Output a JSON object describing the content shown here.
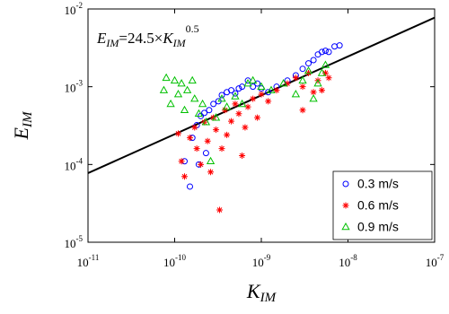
{
  "chart_data": {
    "type": "scatter",
    "x_label": {
      "text": "K",
      "subscript": "IM"
    },
    "y_label": {
      "text": "E",
      "subscript": "IM"
    },
    "annotation": {
      "parts": [
        {
          "text": "E",
          "style": "italic"
        },
        {
          "text": "IM",
          "style": "sub"
        },
        {
          "text": "=24.5×",
          "style": "normal"
        },
        {
          "text": "K",
          "style": "italic"
        },
        {
          "text": "IM",
          "style": "sub"
        },
        {
          "text": "0.5",
          "style": "sup"
        }
      ]
    },
    "fit": {
      "coefficient": 24.5,
      "exponent": 0.5,
      "color": "#000000"
    },
    "x_log": true,
    "y_log": true,
    "xlim": [
      1e-11,
      1e-07
    ],
    "ylim": [
      1e-05,
      0.01
    ],
    "xticks": [
      {
        "value": 1e-11,
        "label": {
          "base": "10",
          "exponent": "-11"
        }
      },
      {
        "value": 1e-10,
        "label": {
          "base": "10",
          "exponent": "-10"
        }
      },
      {
        "value": 1e-09,
        "label": {
          "base": "10",
          "exponent": "-9"
        }
      },
      {
        "value": 1e-08,
        "label": {
          "base": "10",
          "exponent": "-8"
        }
      },
      {
        "value": 1e-07,
        "label": {
          "base": "10",
          "exponent": "-7"
        }
      }
    ],
    "yticks": [
      {
        "value": 1e-05,
        "label": {
          "base": "10",
          "exponent": "-5"
        }
      },
      {
        "value": 0.0001,
        "label": {
          "base": "10",
          "exponent": "-4"
        }
      },
      {
        "value": 0.001,
        "label": {
          "base": "10",
          "exponent": "-3"
        }
      },
      {
        "value": 0.01,
        "label": {
          "base": "10",
          "exponent": "-2"
        }
      }
    ],
    "legend": "lower right",
    "series": [
      {
        "name": "0.3 m/s",
        "color": "#0000ff",
        "marker": "circle",
        "x": [
          1.3e-10,
          1.5e-10,
          1.6e-10,
          1.8e-10,
          2e-10,
          2.2e-10,
          2.5e-10,
          2.8e-10,
          3.2e-10,
          3.5e-10,
          4e-10,
          4.5e-10,
          5e-10,
          5.5e-10,
          6e-10,
          7e-10,
          8e-10,
          9e-10,
          1e-09,
          1.2e-09,
          1.5e-09,
          2e-09,
          2.5e-09,
          3e-09,
          3.5e-09,
          4e-09,
          4.5e-09,
          5e-09,
          5.5e-09,
          6e-09,
          7e-09,
          8e-09,
          1.9e-10,
          2.3e-10
        ],
        "values": [
          0.00011,
          5.2e-05,
          0.00022,
          0.00032,
          0.00042,
          0.00046,
          0.0005,
          0.0006,
          0.00065,
          0.00078,
          0.00085,
          0.0009,
          0.00082,
          0.00095,
          0.001,
          0.0012,
          0.001,
          0.0011,
          0.00095,
          0.00085,
          0.001,
          0.0012,
          0.0014,
          0.0017,
          0.002,
          0.0022,
          0.0026,
          0.0028,
          0.0029,
          0.0028,
          0.0033,
          0.0034,
          0.0001,
          0.00014
        ]
      },
      {
        "name": "0.6 m/s",
        "color": "#ff0000",
        "marker": "asterisk",
        "x": [
          1.1e-10,
          1.2e-10,
          1.3e-10,
          1.5e-10,
          1.7e-10,
          1.8e-10,
          2e-10,
          2.2e-10,
          2.4e-10,
          2.6e-10,
          2.8e-10,
          3e-10,
          3.3e-10,
          3.5e-10,
          3.8e-10,
          4e-10,
          4.5e-10,
          5e-10,
          5.5e-10,
          6e-10,
          6.5e-10,
          7e-10,
          8e-10,
          9e-10,
          1e-09,
          1.2e-09,
          1.5e-09,
          2e-09,
          2.5e-09,
          3e-09,
          3.5e-09,
          4e-09,
          4.5e-09,
          5e-09,
          5.5e-09,
          3e-09,
          6e-09
        ],
        "values": [
          0.00025,
          0.00011,
          7e-05,
          0.00022,
          0.0003,
          0.00016,
          0.0001,
          0.00035,
          0.0002,
          8e-05,
          0.0004,
          0.00028,
          2.6e-05,
          0.00016,
          0.0005,
          0.00024,
          0.00036,
          0.0006,
          0.00045,
          0.00013,
          0.0003,
          0.00055,
          0.0007,
          0.0004,
          0.0008,
          0.00065,
          0.0009,
          0.0011,
          0.0013,
          0.001,
          0.0015,
          0.00085,
          0.0012,
          0.0009,
          0.0015,
          0.0005,
          0.0013
        ]
      },
      {
        "name": "0.9 m/s",
        "color": "#00c000",
        "marker": "triangle",
        "x": [
          7.5e-11,
          8e-11,
          9e-11,
          1e-10,
          1.1e-10,
          1.2e-10,
          1.3e-10,
          1.4e-10,
          1.6e-10,
          1.7e-10,
          1.9e-10,
          2.1e-10,
          2.3e-10,
          2.6e-10,
          3e-10,
          3.5e-10,
          4e-10,
          5e-10,
          6e-10,
          7e-10,
          8e-10,
          1e-09,
          1.3e-09,
          1.8e-09,
          2.5e-09,
          3e-09,
          3.5e-09,
          4.5e-09,
          5e-09,
          5.5e-09,
          4e-09
        ],
        "values": [
          0.0009,
          0.0013,
          0.0006,
          0.0012,
          0.0008,
          0.0011,
          0.0005,
          0.0009,
          0.0012,
          0.0007,
          0.00045,
          0.0006,
          0.00035,
          0.00011,
          0.0004,
          0.0007,
          0.00055,
          0.00075,
          0.0006,
          0.0011,
          0.0012,
          0.001,
          0.0009,
          0.0011,
          0.0008,
          0.0012,
          0.0016,
          0.0011,
          0.0015,
          0.0019,
          0.0007
        ]
      }
    ]
  }
}
